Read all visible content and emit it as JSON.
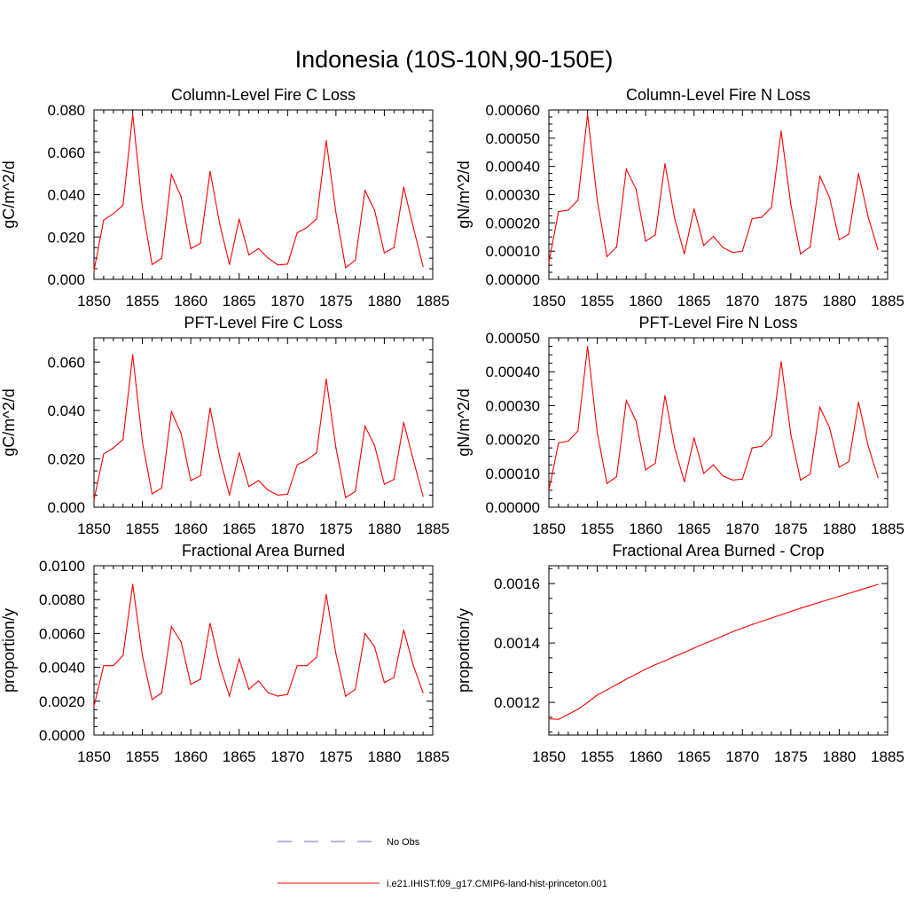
{
  "figure": {
    "title": "Indonesia (10S-10N,90-150E)"
  },
  "legend": {
    "items": [
      {
        "label": "No Obs",
        "color": "#6a6ad8",
        "dash": true
      },
      {
        "label": "i.e21.IHIST.f09_g17.CMIP6-land-hist-princeton.001",
        "color": "#ff0000",
        "dash": false
      }
    ]
  },
  "colors": {
    "series": "#ff0000",
    "axis": "#000000"
  },
  "chart_data": [
    {
      "type": "line",
      "title": "Column-Level Fire C Loss",
      "xlabel": "",
      "ylabel": "gC/m^2/d",
      "xlim": [
        1850,
        1885
      ],
      "ylim": [
        0,
        0.08
      ],
      "xticks": [
        1850,
        1855,
        1860,
        1865,
        1870,
        1875,
        1880,
        1885
      ],
      "xtick_labels": [
        "1850",
        "1855",
        "1860",
        "1865",
        "1870",
        "1875",
        "1880",
        "1885"
      ],
      "yticks": [
        0,
        0.02,
        0.04,
        0.06,
        0.08
      ],
      "ytick_labels": [
        "0.000",
        "0.020",
        "0.040",
        "0.060",
        "0.080"
      ],
      "x": [
        1850,
        1851,
        1852,
        1853,
        1854,
        1855,
        1856,
        1857,
        1858,
        1859,
        1860,
        1861,
        1862,
        1863,
        1864,
        1865,
        1866,
        1867,
        1868,
        1869,
        1870,
        1871,
        1872,
        1873,
        1874,
        1875,
        1876,
        1877,
        1878,
        1879,
        1880,
        1881,
        1882,
        1883,
        1884
      ],
      "series": [
        {
          "values": [
            0.004,
            0.028,
            0.031,
            0.035,
            0.078,
            0.034,
            0.007,
            0.01,
            0.0495,
            0.039,
            0.0145,
            0.017,
            0.051,
            0.026,
            0.007,
            0.0285,
            0.0115,
            0.0145,
            0.01,
            0.0068,
            0.0072,
            0.022,
            0.0245,
            0.0285,
            0.0655,
            0.0315,
            0.0055,
            0.009,
            0.042,
            0.0325,
            0.0125,
            0.015,
            0.0435,
            0.0245,
            0.006
          ]
        }
      ]
    },
    {
      "type": "line",
      "title": "Column-Level Fire N Loss",
      "xlabel": "",
      "ylabel": "gN/m^2/d",
      "xlim": [
        1850,
        1885
      ],
      "ylim": [
        0,
        0.0006
      ],
      "xticks": [
        1850,
        1855,
        1860,
        1865,
        1870,
        1875,
        1880,
        1885
      ],
      "xtick_labels": [
        "1850",
        "1855",
        "1860",
        "1865",
        "1870",
        "1875",
        "1880",
        "1885"
      ],
      "yticks": [
        0,
        0.0001,
        0.0002,
        0.0003,
        0.0004,
        0.0005,
        0.0006
      ],
      "ytick_labels": [
        "0.00000",
        "0.00010",
        "0.00020",
        "0.00030",
        "0.00040",
        "0.00050",
        "0.00060"
      ],
      "x": [
        1850,
        1851,
        1852,
        1853,
        1854,
        1855,
        1856,
        1857,
        1858,
        1859,
        1860,
        1861,
        1862,
        1863,
        1864,
        1865,
        1866,
        1867,
        1868,
        1869,
        1870,
        1871,
        1872,
        1873,
        1874,
        1875,
        1876,
        1877,
        1878,
        1879,
        1880,
        1881,
        1882,
        1883,
        1884
      ],
      "series": [
        {
          "values": [
            6e-05,
            0.00024,
            0.000245,
            0.00028,
            0.000585,
            0.00028,
            8e-05,
            0.000115,
            0.00039,
            0.00032,
            0.000135,
            0.000158,
            0.00041,
            0.000215,
            9e-05,
            0.00025,
            0.00012,
            0.000152,
            0.000112,
            9.5e-05,
            0.0001,
            0.000215,
            0.00022,
            0.000255,
            0.000525,
            0.000265,
            9e-05,
            0.000115,
            0.000365,
            0.00029,
            0.00014,
            0.00016,
            0.000375,
            0.00022,
            0.000105
          ]
        }
      ]
    },
    {
      "type": "line",
      "title": "PFT-Level Fire C Loss",
      "xlabel": "",
      "ylabel": "gC/m^2/d",
      "xlim": [
        1850,
        1885
      ],
      "ylim": [
        0,
        0.07
      ],
      "xticks": [
        1850,
        1855,
        1860,
        1865,
        1870,
        1875,
        1880,
        1885
      ],
      "xtick_labels": [
        "1850",
        "1855",
        "1860",
        "1865",
        "1870",
        "1875",
        "1880",
        "1885"
      ],
      "yticks": [
        0,
        0.02,
        0.04,
        0.06
      ],
      "ytick_labels": [
        "0.000",
        "0.020",
        "0.040",
        "0.060"
      ],
      "x": [
        1850,
        1851,
        1852,
        1853,
        1854,
        1855,
        1856,
        1857,
        1858,
        1859,
        1860,
        1861,
        1862,
        1863,
        1864,
        1865,
        1866,
        1867,
        1868,
        1869,
        1870,
        1871,
        1872,
        1873,
        1874,
        1875,
        1876,
        1877,
        1878,
        1879,
        1880,
        1881,
        1882,
        1883,
        1884
      ],
      "series": [
        {
          "values": [
            0.003,
            0.022,
            0.0245,
            0.028,
            0.063,
            0.027,
            0.0055,
            0.008,
            0.0395,
            0.0305,
            0.011,
            0.013,
            0.041,
            0.0205,
            0.005,
            0.0225,
            0.0085,
            0.011,
            0.007,
            0.005,
            0.0053,
            0.0175,
            0.0195,
            0.0225,
            0.053,
            0.0245,
            0.004,
            0.0065,
            0.0335,
            0.0255,
            0.0095,
            0.0115,
            0.035,
            0.0195,
            0.0045
          ]
        }
      ]
    },
    {
      "type": "line",
      "title": "PFT-Level Fire N Loss",
      "xlabel": "",
      "ylabel": "gN/m^2/d",
      "xlim": [
        1850,
        1885
      ],
      "ylim": [
        0,
        0.0005
      ],
      "xticks": [
        1850,
        1855,
        1860,
        1865,
        1870,
        1875,
        1880,
        1885
      ],
      "xtick_labels": [
        "1850",
        "1855",
        "1860",
        "1865",
        "1870",
        "1875",
        "1880",
        "1885"
      ],
      "yticks": [
        0,
        0.0001,
        0.0002,
        0.0003,
        0.0004,
        0.0005
      ],
      "ytick_labels": [
        "0.00000",
        "0.00010",
        "0.00020",
        "0.00030",
        "0.00040",
        "0.00050"
      ],
      "x": [
        1850,
        1851,
        1852,
        1853,
        1854,
        1855,
        1856,
        1857,
        1858,
        1859,
        1860,
        1861,
        1862,
        1863,
        1864,
        1865,
        1866,
        1867,
        1868,
        1869,
        1870,
        1871,
        1872,
        1873,
        1874,
        1875,
        1876,
        1877,
        1878,
        1879,
        1880,
        1881,
        1882,
        1883,
        1884
      ],
      "series": [
        {
          "values": [
            5e-05,
            0.00019,
            0.000195,
            0.000225,
            0.000475,
            0.00022,
            7e-05,
            9e-05,
            0.000315,
            0.000255,
            0.00011,
            0.00013,
            0.00033,
            0.000175,
            7.5e-05,
            0.000205,
            0.0001,
            0.000125,
            9.2e-05,
            8e-05,
            8.3e-05,
            0.000175,
            0.00018,
            0.00021,
            0.00043,
            0.000215,
            8e-05,
            9.8e-05,
            0.000295,
            0.000235,
            0.000118,
            0.000135,
            0.00031,
            0.00018,
            8.8e-05
          ]
        }
      ]
    },
    {
      "type": "line",
      "title": "Fractional Area Burned",
      "xlabel": "",
      "ylabel": "proportion/y",
      "xlim": [
        1850,
        1885
      ],
      "ylim": [
        0,
        0.01
      ],
      "xticks": [
        1850,
        1855,
        1860,
        1865,
        1870,
        1875,
        1880,
        1885
      ],
      "xtick_labels": [
        "1850",
        "1855",
        "1860",
        "1865",
        "1870",
        "1875",
        "1880",
        "1885"
      ],
      "yticks": [
        0,
        0.002,
        0.004,
        0.006,
        0.008,
        0.01
      ],
      "ytick_labels": [
        "0.0000",
        "0.0020",
        "0.0040",
        "0.0060",
        "0.0080",
        "0.0100"
      ],
      "x": [
        1850,
        1851,
        1852,
        1853,
        1854,
        1855,
        1856,
        1857,
        1858,
        1859,
        1860,
        1861,
        1862,
        1863,
        1864,
        1865,
        1866,
        1867,
        1868,
        1869,
        1870,
        1871,
        1872,
        1873,
        1874,
        1875,
        1876,
        1877,
        1878,
        1879,
        1880,
        1881,
        1882,
        1883,
        1884
      ],
      "series": [
        {
          "values": [
            0.0017,
            0.0041,
            0.0041,
            0.0047,
            0.0089,
            0.0047,
            0.0021,
            0.0025,
            0.0064,
            0.0055,
            0.003,
            0.0033,
            0.0066,
            0.0041,
            0.0023,
            0.0045,
            0.0027,
            0.0032,
            0.0025,
            0.0023,
            0.0024,
            0.0041,
            0.0041,
            0.0046,
            0.0083,
            0.0048,
            0.0023,
            0.0027,
            0.006,
            0.0052,
            0.0031,
            0.0034,
            0.0062,
            0.0041,
            0.0025
          ]
        }
      ]
    },
    {
      "type": "line",
      "title": "Fractional Area Burned - Crop",
      "xlabel": "",
      "ylabel": "proportion/y",
      "xlim": [
        1850,
        1885
      ],
      "ylim": [
        0.00109,
        0.00166
      ],
      "xticks": [
        1850,
        1855,
        1860,
        1865,
        1870,
        1875,
        1880,
        1885
      ],
      "xtick_labels": [
        "1850",
        "1855",
        "1860",
        "1865",
        "1870",
        "1875",
        "1880",
        "1885"
      ],
      "yticks": [
        0.0012,
        0.0014,
        0.0016
      ],
      "ytick_labels": [
        "0.0012",
        "0.0014",
        "0.0016"
      ],
      "x": [
        1850,
        1851,
        1852,
        1853,
        1854,
        1855,
        1856,
        1857,
        1858,
        1859,
        1860,
        1861,
        1862,
        1863,
        1864,
        1865,
        1866,
        1867,
        1868,
        1869,
        1870,
        1871,
        1872,
        1873,
        1874,
        1875,
        1876,
        1877,
        1878,
        1879,
        1880,
        1881,
        1882,
        1883,
        1884
      ],
      "series": [
        {
          "values": [
            0.001145,
            0.001143,
            0.00116,
            0.001177,
            0.0012,
            0.001225,
            0.001242,
            0.00126,
            0.001278,
            0.001295,
            0.001312,
            0.001327,
            0.00134,
            0.001355,
            0.001368,
            0.001383,
            0.001397,
            0.00141,
            0.001424,
            0.001438,
            0.00145,
            0.001462,
            0.001473,
            0.001484,
            0.001495,
            0.001506,
            0.001517,
            0.001527,
            0.001537,
            0.001547,
            0.001557,
            0.001567,
            0.001577,
            0.001587,
            0.001597
          ]
        }
      ]
    }
  ]
}
